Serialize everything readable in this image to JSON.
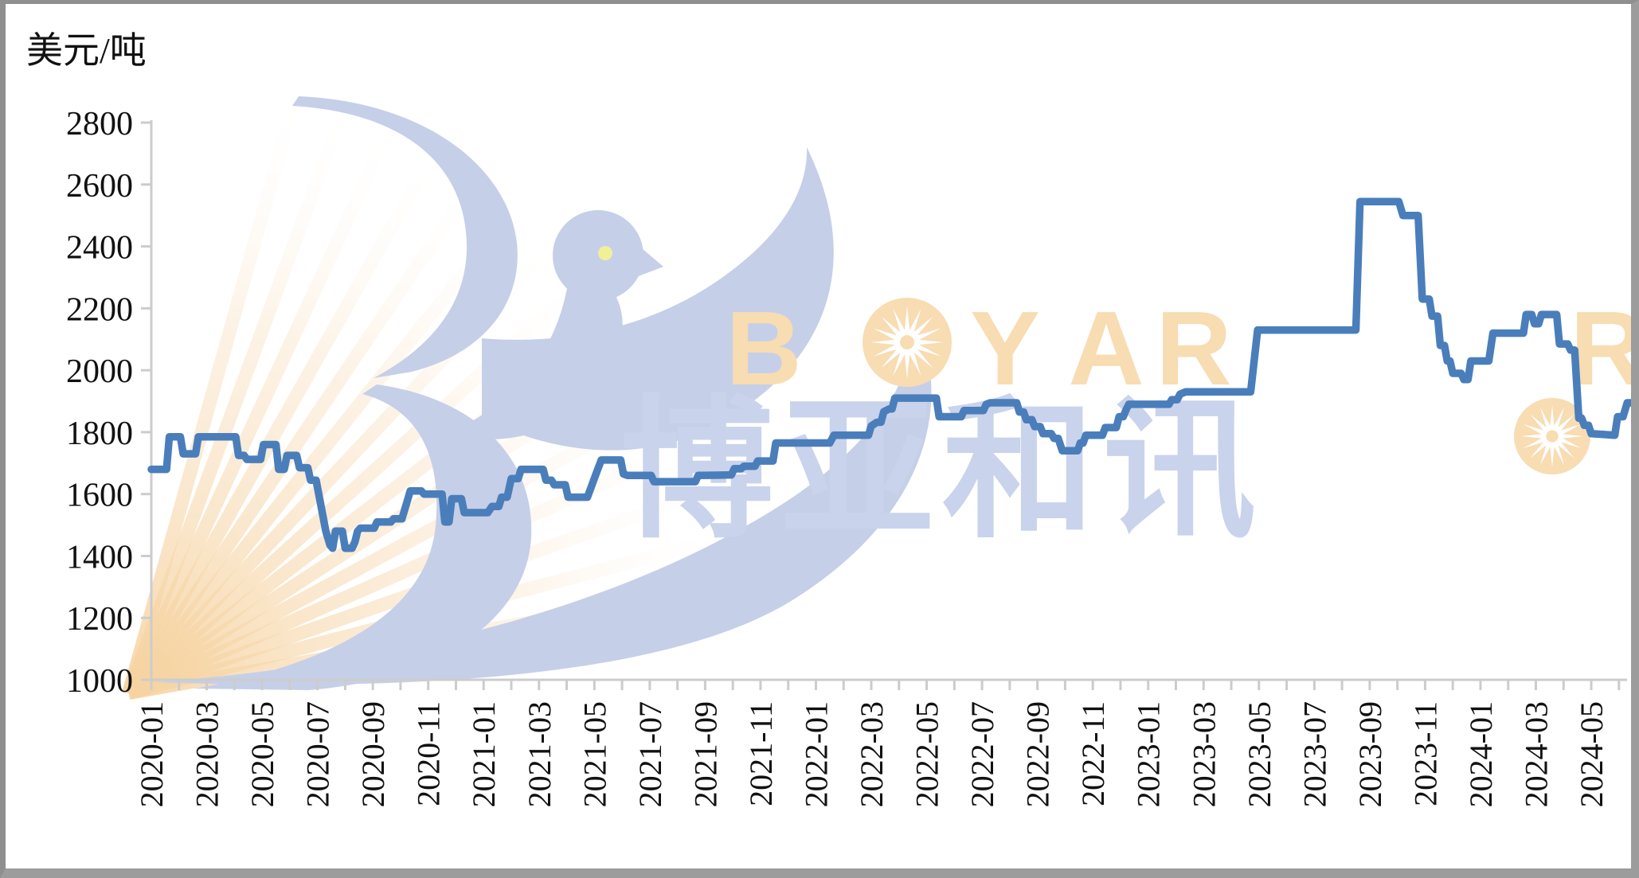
{
  "unit_label": "美元/吨",
  "colors": {
    "line": "#4a7ebb",
    "axis": "#cccccc",
    "tick_text": "#111111",
    "watermark_blue": "#c6cfe8",
    "watermark_cn_blue": "#cad3ec",
    "watermark_orange": "#f8dcb2",
    "watermark_stripe": "#f6d3a0",
    "bird_eye_yellow": "#f2ef9b"
  },
  "watermark": {
    "latin": "BOYAR",
    "cn": "博亚和讯"
  },
  "chart_data": {
    "type": "line",
    "title": "",
    "xlabel": "",
    "ylabel": "美元/吨",
    "ylim": [
      1000,
      2800
    ],
    "ytick_step": 200,
    "ytick_labels": [
      "2800",
      "2600",
      "2400",
      "2200",
      "2000",
      "1800",
      "1600",
      "1400",
      "1200",
      "1000"
    ],
    "grid": false,
    "legend": "none",
    "x_unit": "months since 2020-01 (fractional = weekly steps)",
    "xtick_labels": [
      "2020-01",
      "2020-03",
      "2020-05",
      "2020-07",
      "2020-09",
      "2020-11",
      "2021-01",
      "2021-03",
      "2021-05",
      "2021-07",
      "2021-09",
      "2021-11",
      "2022-01",
      "2022-03",
      "2022-05",
      "2022-07",
      "2022-09",
      "2022-11",
      "2023-01",
      "2023-03",
      "2023-05",
      "2023-07",
      "2023-09",
      "2023-11",
      "2024-01",
      "2024-03",
      "2024-05"
    ],
    "series": [
      {
        "name": "price_usd_per_ton",
        "color": "#4a7ebb",
        "points": [
          [
            0.0,
            1680
          ],
          [
            0.55,
            1680
          ],
          [
            0.65,
            1785
          ],
          [
            1.05,
            1785
          ],
          [
            1.15,
            1730
          ],
          [
            1.6,
            1730
          ],
          [
            1.7,
            1785
          ],
          [
            3.05,
            1785
          ],
          [
            3.15,
            1725
          ],
          [
            3.35,
            1725
          ],
          [
            3.45,
            1712
          ],
          [
            3.95,
            1712
          ],
          [
            4.05,
            1760
          ],
          [
            4.5,
            1760
          ],
          [
            4.6,
            1680
          ],
          [
            4.8,
            1680
          ],
          [
            4.9,
            1725
          ],
          [
            5.25,
            1725
          ],
          [
            5.35,
            1685
          ],
          [
            5.65,
            1685
          ],
          [
            5.75,
            1645
          ],
          [
            5.95,
            1645
          ],
          [
            6.3,
            1480
          ],
          [
            6.45,
            1435
          ],
          [
            6.55,
            1425
          ],
          [
            6.65,
            1480
          ],
          [
            6.9,
            1480
          ],
          [
            7.0,
            1425
          ],
          [
            7.25,
            1425
          ],
          [
            7.35,
            1445
          ],
          [
            7.45,
            1480
          ],
          [
            7.55,
            1490
          ],
          [
            8.05,
            1490
          ],
          [
            8.15,
            1510
          ],
          [
            8.65,
            1510
          ],
          [
            8.75,
            1520
          ],
          [
            9.05,
            1520
          ],
          [
            9.2,
            1565
          ],
          [
            9.35,
            1610
          ],
          [
            9.75,
            1610
          ],
          [
            9.85,
            1600
          ],
          [
            10.5,
            1600
          ],
          [
            10.6,
            1510
          ],
          [
            10.75,
            1510
          ],
          [
            10.85,
            1585
          ],
          [
            11.2,
            1585
          ],
          [
            11.3,
            1540
          ],
          [
            12.15,
            1540
          ],
          [
            12.3,
            1560
          ],
          [
            12.55,
            1560
          ],
          [
            12.65,
            1590
          ],
          [
            12.85,
            1590
          ],
          [
            13.0,
            1650
          ],
          [
            13.25,
            1650
          ],
          [
            13.35,
            1680
          ],
          [
            14.15,
            1680
          ],
          [
            14.25,
            1645
          ],
          [
            14.45,
            1645
          ],
          [
            14.55,
            1630
          ],
          [
            14.95,
            1630
          ],
          [
            15.05,
            1590
          ],
          [
            15.75,
            1590
          ],
          [
            16.1,
            1675
          ],
          [
            16.25,
            1710
          ],
          [
            16.95,
            1710
          ],
          [
            17.05,
            1665
          ],
          [
            17.2,
            1660
          ],
          [
            18.05,
            1660
          ],
          [
            18.15,
            1640
          ],
          [
            19.65,
            1640
          ],
          [
            19.75,
            1660
          ],
          [
            20.95,
            1662
          ],
          [
            21.05,
            1682
          ],
          [
            21.3,
            1682
          ],
          [
            21.4,
            1690
          ],
          [
            21.8,
            1690
          ],
          [
            21.9,
            1707
          ],
          [
            22.45,
            1707
          ],
          [
            22.55,
            1765
          ],
          [
            24.5,
            1765
          ],
          [
            24.65,
            1790
          ],
          [
            25.9,
            1790
          ],
          [
            26.0,
            1820
          ],
          [
            26.2,
            1832
          ],
          [
            26.35,
            1832
          ],
          [
            26.45,
            1866
          ],
          [
            26.65,
            1875
          ],
          [
            26.75,
            1875
          ],
          [
            26.85,
            1910
          ],
          [
            28.35,
            1910
          ],
          [
            28.45,
            1850
          ],
          [
            29.25,
            1850
          ],
          [
            29.35,
            1870
          ],
          [
            30.05,
            1870
          ],
          [
            30.15,
            1890
          ],
          [
            30.3,
            1895
          ],
          [
            31.25,
            1895
          ],
          [
            31.35,
            1865
          ],
          [
            31.5,
            1865
          ],
          [
            31.6,
            1840
          ],
          [
            31.8,
            1840
          ],
          [
            31.9,
            1818
          ],
          [
            32.1,
            1818
          ],
          [
            32.2,
            1795
          ],
          [
            32.5,
            1795
          ],
          [
            32.6,
            1780
          ],
          [
            32.75,
            1780
          ],
          [
            32.9,
            1740
          ],
          [
            33.45,
            1740
          ],
          [
            33.55,
            1765
          ],
          [
            33.65,
            1765
          ],
          [
            33.75,
            1790
          ],
          [
            34.35,
            1790
          ],
          [
            34.45,
            1815
          ],
          [
            34.85,
            1815
          ],
          [
            34.95,
            1850
          ],
          [
            35.1,
            1850
          ],
          [
            35.2,
            1872
          ],
          [
            35.3,
            1890
          ],
          [
            36.75,
            1890
          ],
          [
            36.85,
            1905
          ],
          [
            37.05,
            1905
          ],
          [
            37.15,
            1923
          ],
          [
            37.35,
            1930
          ],
          [
            39.7,
            1930
          ],
          [
            39.95,
            2130
          ],
          [
            43.5,
            2130
          ],
          [
            43.65,
            2545
          ],
          [
            45.05,
            2545
          ],
          [
            45.2,
            2500
          ],
          [
            45.75,
            2500
          ],
          [
            45.9,
            2230
          ],
          [
            46.15,
            2230
          ],
          [
            46.25,
            2175
          ],
          [
            46.45,
            2175
          ],
          [
            46.55,
            2080
          ],
          [
            46.7,
            2080
          ],
          [
            46.8,
            2030
          ],
          [
            46.9,
            2030
          ],
          [
            47.0,
            1990
          ],
          [
            47.3,
            1990
          ],
          [
            47.4,
            1970
          ],
          [
            47.55,
            1970
          ],
          [
            47.65,
            2030
          ],
          [
            48.3,
            2030
          ],
          [
            48.45,
            2120
          ],
          [
            49.55,
            2120
          ],
          [
            49.65,
            2180
          ],
          [
            49.85,
            2180
          ],
          [
            49.95,
            2150
          ],
          [
            50.1,
            2150
          ],
          [
            50.2,
            2180
          ],
          [
            50.75,
            2180
          ],
          [
            50.85,
            2085
          ],
          [
            51.15,
            2085
          ],
          [
            51.25,
            2065
          ],
          [
            51.4,
            2065
          ],
          [
            51.55,
            1845
          ],
          [
            51.65,
            1845
          ],
          [
            51.75,
            1822
          ],
          [
            51.9,
            1822
          ],
          [
            52.0,
            1795
          ],
          [
            52.85,
            1790
          ],
          [
            52.95,
            1850
          ],
          [
            53.15,
            1850
          ],
          [
            53.3,
            1895
          ],
          [
            53.42,
            1895
          ]
        ]
      }
    ]
  }
}
